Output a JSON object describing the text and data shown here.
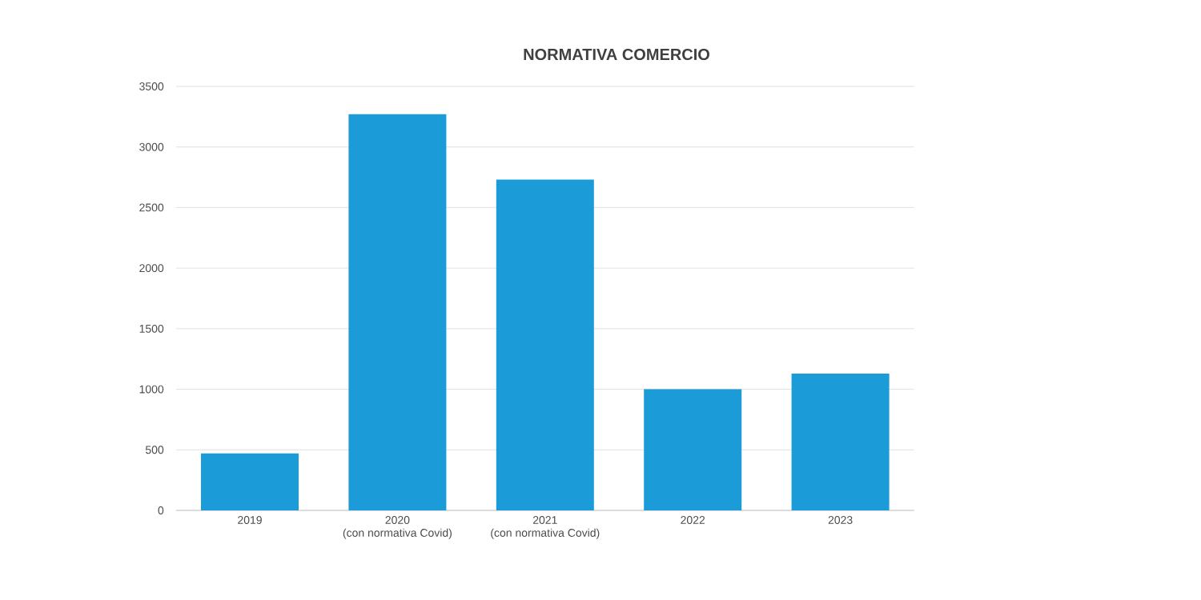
{
  "chart_data": {
    "type": "bar",
    "title": "NORMATIVA COMERCIO",
    "categories": [
      "2019",
      "2020\n(con normativa Covid)",
      "2021\n(con normativa Covid)",
      "2022",
      "2023"
    ],
    "values": [
      470,
      3270,
      2730,
      1000,
      1130
    ],
    "color": "#1b9bd8",
    "ylim": [
      0,
      3500
    ],
    "yticks": [
      0,
      500,
      1000,
      1500,
      2000,
      2500,
      3000,
      3500
    ],
    "grid": "y"
  }
}
